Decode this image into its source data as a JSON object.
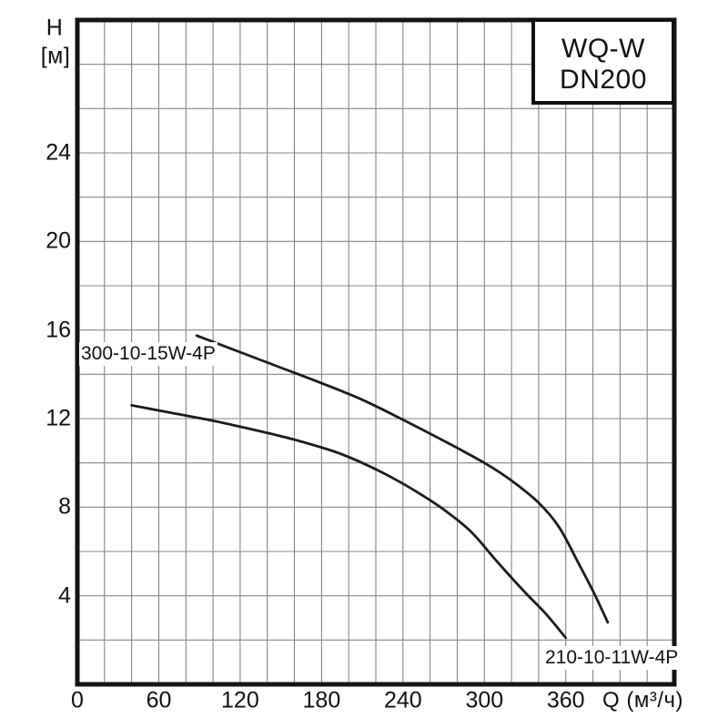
{
  "colors": {
    "background": "#ffffff",
    "grid": "#848484",
    "frame": "#141414",
    "curve": "#1c1c1c",
    "text": "#111111"
  },
  "axis": {
    "y_title_line1": "H",
    "y_title_line2": "[м]",
    "x_unit_label": "Q (м³/ч)"
  },
  "title_box": {
    "line1": "WQ-W",
    "line2": "DN200"
  },
  "chart_data": {
    "type": "line",
    "title": "WQ-W DN200",
    "xlabel": "Q (м³/ч)",
    "ylabel": "H [м]",
    "xlim": [
      0,
      440
    ],
    "ylim": [
      0,
      30
    ],
    "x_grid_step": 20,
    "y_grid_step": 2,
    "x_tick_labels": [
      "0",
      "60",
      "120",
      "180",
      "240",
      "300",
      "360"
    ],
    "x_tick_values": [
      0,
      60,
      120,
      180,
      240,
      300,
      360
    ],
    "y_tick_labels": [
      "4",
      "8",
      "12",
      "16",
      "20",
      "24"
    ],
    "y_tick_values": [
      4,
      8,
      12,
      16,
      20,
      24
    ],
    "grid": true,
    "legend_position": "labels-on-chart",
    "series": [
      {
        "name": "300-10-15W-4P",
        "points": [
          [
            88,
            15.75
          ],
          [
            120,
            15.0
          ],
          [
            150,
            14.3
          ],
          [
            180,
            13.6
          ],
          [
            210,
            12.85
          ],
          [
            240,
            11.95
          ],
          [
            270,
            11.0
          ],
          [
            300,
            10.0
          ],
          [
            320,
            9.2
          ],
          [
            340,
            8.2
          ],
          [
            355,
            7.1
          ],
          [
            370,
            5.4
          ],
          [
            381,
            4.1
          ],
          [
            391,
            2.8
          ]
        ]
      },
      {
        "name": "210-10-11W-4P",
        "points": [
          [
            40,
            12.6
          ],
          [
            70,
            12.25
          ],
          [
            100,
            11.9
          ],
          [
            130,
            11.5
          ],
          [
            160,
            11.05
          ],
          [
            190,
            10.5
          ],
          [
            210,
            10.0
          ],
          [
            230,
            9.4
          ],
          [
            250,
            8.7
          ],
          [
            270,
            7.9
          ],
          [
            290,
            6.9
          ],
          [
            310,
            5.5
          ],
          [
            330,
            4.15
          ],
          [
            345,
            3.2
          ],
          [
            360,
            2.1
          ]
        ]
      }
    ]
  }
}
